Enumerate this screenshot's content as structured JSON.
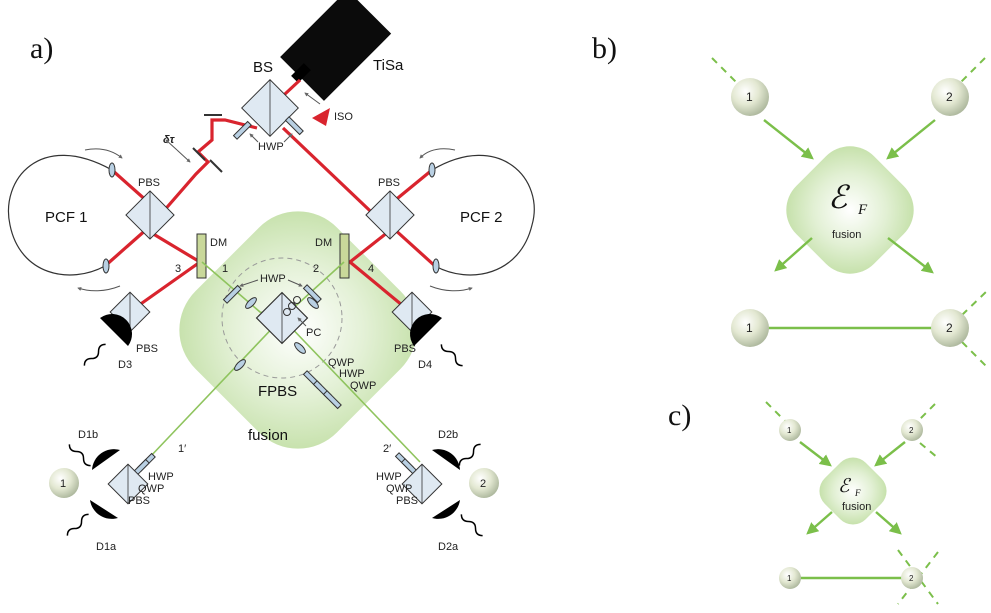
{
  "panels": {
    "a": "a)",
    "b": "b)",
    "c": "c)"
  },
  "setup": {
    "laser": "TiSa",
    "isolator": "ISO",
    "beam_splitter": "BS",
    "delay": "δτ",
    "pcf_left": "PCF 1",
    "pcf_right": "PCF 2",
    "pbs": "PBS",
    "dm": "DM",
    "hwp": "HWP",
    "qwp": "QWP",
    "pc": "PC",
    "fpbs": "FPBS",
    "fusion": "fusion",
    "port_1": "1",
    "port_2": "2",
    "port_3": "3",
    "port_4": "4",
    "port_1p": "1′",
    "port_2p": "2′",
    "detectors": {
      "d3": "D3",
      "d4": "D4",
      "d1a": "D1a",
      "d1b": "D1b",
      "d2a": "D2a",
      "d2b": "D2b"
    },
    "qubit_left": "1",
    "qubit_right": "2"
  },
  "schematic": {
    "node_1": "1",
    "node_2": "2",
    "gate_symbol": "ℰ",
    "gate_subscript": "F",
    "gate_label": "fusion"
  },
  "colors": {
    "pump_beam": "#d9242e",
    "photon_beam": "#8fc45e",
    "fusion_glow": "#cfe6b8",
    "node_fill": "#dfe7c9",
    "edge": "#7bbf4a"
  }
}
